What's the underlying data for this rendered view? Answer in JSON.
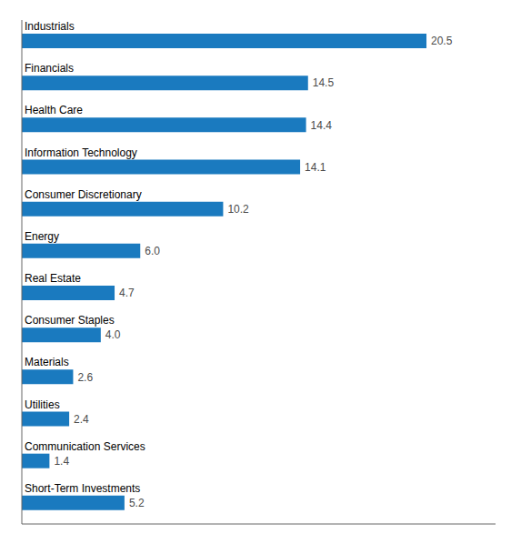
{
  "chart_data": {
    "type": "bar",
    "orientation": "horizontal",
    "categories": [
      "Short-Term Investments",
      "Communication Services",
      "Utilities",
      "Materials",
      "Consumer Staples",
      "Real Estate",
      "Energy",
      "Consumer Discretionary",
      "Information Technology",
      "Health Care",
      "Financials",
      "Industrials"
    ],
    "values": [
      5.2,
      1.4,
      2.4,
      2.6,
      4.0,
      4.7,
      6.0,
      10.2,
      14.1,
      14.4,
      14.5,
      20.5
    ],
    "value_labels": [
      "5.2",
      "1.4",
      "2.4",
      "2.6",
      "4.0",
      "4.7",
      "6.0",
      "10.2",
      "14.1",
      "14.4",
      "14.5",
      "20.5"
    ],
    "data_labels": true,
    "color": "#1a7abf",
    "xlim": [
      0,
      24
    ],
    "tick_labels": "y"
  }
}
